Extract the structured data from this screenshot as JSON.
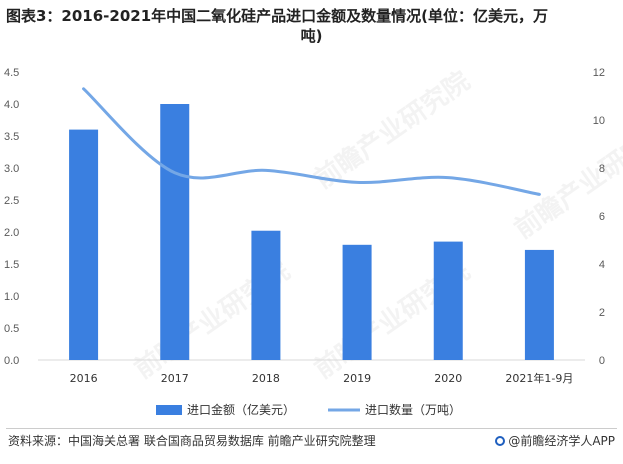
{
  "title": {
    "line1": "图表3：2016-2021年中国二氧化硅产品进口金额及数量情况(单位：亿美元，万",
    "line2": "吨)"
  },
  "chart_data": {
    "type": "bar",
    "categories": [
      "2016",
      "2017",
      "2018",
      "2019",
      "2020",
      "2021年1-9月"
    ],
    "series": [
      {
        "name": "进口金额（亿美元）",
        "type": "bar",
        "axis": "left",
        "color": "#3a7fe0",
        "values": [
          3.6,
          4.0,
          2.02,
          1.8,
          1.85,
          1.72
        ]
      },
      {
        "name": "进口数量（万吨）",
        "type": "line",
        "axis": "right",
        "color": "#74a7e6",
        "values": [
          11.3,
          7.8,
          7.9,
          7.4,
          7.6,
          6.9
        ]
      }
    ],
    "y_left": {
      "min": 0,
      "max": 4.5,
      "ticks": [
        "0.0",
        "0.5",
        "1.0",
        "1.5",
        "2.0",
        "2.5",
        "3.0",
        "3.5",
        "4.0",
        "4.5"
      ]
    },
    "y_right": {
      "min": 0,
      "max": 12,
      "ticks": [
        "0",
        "2",
        "4",
        "6",
        "8",
        "10",
        "12"
      ]
    },
    "grid": false,
    "legend_position": "bottom"
  },
  "footer": {
    "source": "资料来源：中国海关总署 联合国商品贸易数据库 前瞻产业研究院整理",
    "brand": "@前瞻经济学人APP"
  },
  "watermark": {
    "text": "前瞻产业研究院"
  }
}
